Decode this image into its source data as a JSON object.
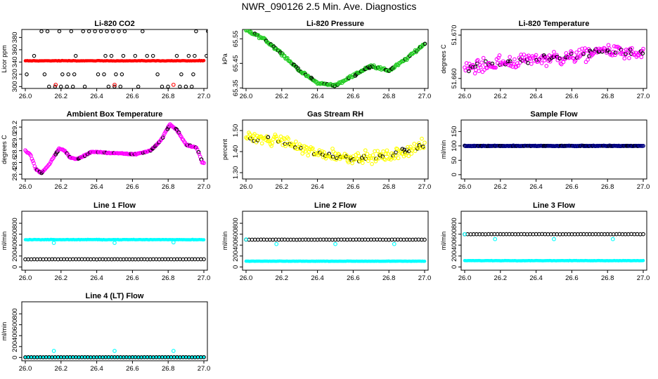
{
  "page": {
    "title": "NWR_090126  2.5 Min. Ave. Diagnostics"
  },
  "colors": {
    "black": "#000000",
    "red": "#ff0000",
    "green": "#22cc22",
    "magenta": "#ff00ff",
    "yellow": "#ffff00",
    "blue": "#000080",
    "cyan": "#00ffff"
  },
  "chart_data": [
    {
      "id": "co2",
      "type": "scatter",
      "title": "Li-820 CO2",
      "ylabel": "Licor ppm",
      "xlim": [
        26.0,
        27.0
      ],
      "ylim": [
        297,
        393
      ],
      "xticks": [
        "26.0",
        "26.2",
        "26.4",
        "26.6",
        "26.8",
        "27.0"
      ],
      "xtick_values": [
        26.0,
        26.2,
        26.4,
        26.6,
        26.8,
        27.0
      ],
      "yticks": [
        "300",
        "320",
        "340",
        "360",
        "380"
      ],
      "ytick_values": [
        300,
        320,
        340,
        360,
        380
      ],
      "series": [
        {
          "name": "reference levels",
          "color": "black",
          "style": "ring",
          "pattern": "levels",
          "levels": [
            300,
            320,
            350,
            390
          ],
          "base": 342,
          "baseline_dense": false
        },
        {
          "name": "CO2",
          "color": "red",
          "style": "solid",
          "pattern": "flat",
          "base": 342,
          "noise": 0.6
        },
        {
          "name": "CO2 outliers",
          "color": "red",
          "style": "ring",
          "points": [
            [
              26.17,
              303
            ],
            [
              26.5,
              303
            ],
            [
              26.83,
              303
            ]
          ]
        }
      ]
    },
    {
      "id": "pressure",
      "type": "scatter",
      "title": "Li-820 Pressure",
      "ylabel": "kPa",
      "xlim": [
        26.0,
        27.0
      ],
      "ylim": [
        65.348,
        65.588
      ],
      "xticks": [
        "26.0",
        "26.2",
        "26.4",
        "26.6",
        "26.8",
        "27.0"
      ],
      "xtick_values": [
        26.0,
        26.2,
        26.4,
        26.6,
        26.8,
        27.0
      ],
      "yticks": [
        "65.35",
        "65.45",
        "65.55"
      ],
      "ytick_values": [
        65.35,
        65.45,
        65.55
      ],
      "series": [
        {
          "name": "pressure",
          "color": "green",
          "style": "ring",
          "pattern": "curve",
          "curve": [
            [
              26.0,
              65.585
            ],
            [
              26.1,
              65.55
            ],
            [
              26.2,
              65.49
            ],
            [
              26.3,
              65.42
            ],
            [
              26.4,
              65.37
            ],
            [
              26.5,
              65.36
            ],
            [
              26.6,
              65.4
            ],
            [
              26.7,
              65.44
            ],
            [
              26.8,
              65.42
            ],
            [
              26.9,
              65.47
            ],
            [
              27.0,
              65.53
            ]
          ],
          "noise": 0.008,
          "with_black": true
        }
      ]
    },
    {
      "id": "li820temp",
      "type": "scatter",
      "title": "Li-820 Temperature",
      "ylabel": "degrees C",
      "xlim": [
        26.0,
        27.0
      ],
      "ylim": [
        51.6577,
        51.6713
      ],
      "xticks": [
        "26.0",
        "26.2",
        "26.4",
        "26.6",
        "26.8",
        "27.0"
      ],
      "xtick_values": [
        26.0,
        26.2,
        26.4,
        26.6,
        26.8,
        27.0
      ],
      "yticks": [
        "51.660",
        "51.670"
      ],
      "ytick_values": [
        51.66,
        51.67
      ],
      "series": [
        {
          "name": "temperature",
          "color": "magenta",
          "style": "ring",
          "pattern": "curve",
          "curve": [
            [
              26.0,
              51.6625
            ],
            [
              26.2,
              51.6635
            ],
            [
              26.4,
              51.6645
            ],
            [
              26.6,
              51.665
            ],
            [
              26.8,
              51.6665
            ],
            [
              27.0,
              51.6655
            ]
          ],
          "noise": 0.0022,
          "with_black": true
        }
      ]
    },
    {
      "id": "ambient",
      "type": "scatter",
      "title": "Ambient Box Temperature",
      "ylabel": "degrees C",
      "xlim": [
        26.0,
        27.0
      ],
      "ylim": [
        28.32,
        29.32
      ],
      "xticks": [
        "26.0",
        "26.2",
        "26.4",
        "26.6",
        "26.8",
        "27.0"
      ],
      "xtick_values": [
        26.0,
        26.2,
        26.4,
        26.6,
        26.8,
        27.0
      ],
      "yticks": [
        "28.4",
        "28.6",
        "28.8",
        "29.0",
        "29.2"
      ],
      "ytick_values": [
        28.4,
        28.6,
        28.8,
        29.0,
        29.2
      ],
      "series": [
        {
          "name": "ambient temp",
          "color": "magenta",
          "style": "ring",
          "pattern": "curve",
          "curve": [
            [
              26.0,
              28.8
            ],
            [
              26.03,
              28.72
            ],
            [
              26.06,
              28.48
            ],
            [
              26.09,
              28.42
            ],
            [
              26.13,
              28.55
            ],
            [
              26.19,
              28.84
            ],
            [
              26.22,
              28.8
            ],
            [
              26.25,
              28.68
            ],
            [
              26.29,
              28.66
            ],
            [
              26.33,
              28.71
            ],
            [
              26.37,
              28.78
            ],
            [
              26.5,
              28.76
            ],
            [
              26.62,
              28.74
            ],
            [
              26.7,
              28.8
            ],
            [
              26.76,
              28.98
            ],
            [
              26.81,
              29.25
            ],
            [
              26.85,
              29.15
            ],
            [
              26.9,
              28.9
            ],
            [
              26.96,
              28.85
            ],
            [
              26.99,
              28.6
            ]
          ],
          "noise": 0.015,
          "with_black": true
        }
      ]
    },
    {
      "id": "rh",
      "type": "scatter",
      "title": "Gas Stream RH",
      "ylabel": "percent",
      "xlim": [
        26.0,
        27.0
      ],
      "ylim": [
        1.27,
        1.55
      ],
      "xticks": [
        "26.0",
        "26.2",
        "26.4",
        "26.6",
        "26.8",
        "27.0"
      ],
      "xtick_values": [
        26.0,
        26.2,
        26.4,
        26.6,
        26.8,
        27.0
      ],
      "yticks": [
        "1.30",
        "1.40",
        "1.50"
      ],
      "ytick_values": [
        1.3,
        1.4,
        1.5
      ],
      "series": [
        {
          "name": "RH",
          "color": "yellow",
          "style": "ring",
          "pattern": "curve",
          "curve": [
            [
              26.0,
              1.47
            ],
            [
              26.2,
              1.45
            ],
            [
              26.4,
              1.39
            ],
            [
              26.6,
              1.37
            ],
            [
              26.8,
              1.38
            ],
            [
              27.0,
              1.43
            ]
          ],
          "noise": 0.04,
          "with_black": true
        }
      ]
    },
    {
      "id": "sample",
      "type": "scatter",
      "title": "Sample Flow",
      "ylabel": "ml/min",
      "xlim": [
        26.0,
        27.0
      ],
      "ylim": [
        -15,
        190
      ],
      "xticks": [
        "26.0",
        "26.2",
        "26.4",
        "26.6",
        "26.8",
        "27.0"
      ],
      "xtick_values": [
        26.0,
        26.2,
        26.4,
        26.6,
        26.8,
        27.0
      ],
      "yticks": [
        "0",
        "50",
        "100",
        "150"
      ],
      "ytick_values": [
        0,
        50,
        100,
        150
      ],
      "series": [
        {
          "name": "sample flow",
          "color": "blue",
          "style": "ring",
          "pattern": "flat",
          "base": 100,
          "noise": 1.5,
          "with_black": true
        }
      ]
    },
    {
      "id": "line1",
      "type": "scatter",
      "title": "Line 1 Flow",
      "ylabel": "ml/min",
      "xlim": [
        26.0,
        27.0
      ],
      "ylim": [
        -60,
        1020
      ],
      "xticks": [
        "26.0",
        "26.2",
        "26.4",
        "26.6",
        "26.8",
        "27.0"
      ],
      "xtick_values": [
        26.0,
        26.2,
        26.4,
        26.6,
        26.8,
        27.0
      ],
      "yticks": [
        "0",
        "200",
        "400",
        "600",
        "800"
      ],
      "ytick_values": [
        0,
        200,
        400,
        600,
        800
      ],
      "series": [
        {
          "name": "line 1 cyan",
          "color": "cyan",
          "style": "solid",
          "pattern": "flat",
          "base": 500,
          "noise": 6
        },
        {
          "name": "line 1 black",
          "color": "black",
          "style": "ring",
          "pattern": "flat",
          "base": 140,
          "noise": 2,
          "sparse": true
        },
        {
          "name": "line 1 dips",
          "color": "cyan",
          "style": "ring",
          "points": [
            [
              26.16,
              440
            ],
            [
              26.5,
              440
            ],
            [
              26.83,
              450
            ]
          ]
        }
      ]
    },
    {
      "id": "line2",
      "type": "scatter",
      "title": "Line 2 Flow",
      "ylabel": "ml/min",
      "xlim": [
        26.0,
        27.0
      ],
      "ylim": [
        -60,
        1020
      ],
      "xticks": [
        "26.0",
        "26.2",
        "26.4",
        "26.6",
        "26.8",
        "27.0"
      ],
      "xtick_values": [
        26.0,
        26.2,
        26.4,
        26.6,
        26.8,
        27.0
      ],
      "yticks": [
        "0",
        "200",
        "400",
        "600",
        "800"
      ],
      "ytick_values": [
        0,
        200,
        400,
        600,
        800
      ],
      "series": [
        {
          "name": "line 2 cyan",
          "color": "cyan",
          "style": "solid",
          "pattern": "flat",
          "base": 105,
          "noise": 4
        },
        {
          "name": "line 2 black",
          "color": "black",
          "style": "ring",
          "pattern": "flat",
          "base": 500,
          "noise": 3,
          "sparse": true
        },
        {
          "name": "line 2 dips",
          "color": "cyan",
          "style": "ring",
          "points": [
            [
              26.0,
              505
            ],
            [
              26.17,
              420
            ],
            [
              26.5,
              420
            ],
            [
              26.83,
              420
            ]
          ]
        }
      ]
    },
    {
      "id": "line3",
      "type": "scatter",
      "title": "Line 3 Flow",
      "ylabel": "ml/min",
      "xlim": [
        26.0,
        27.0
      ],
      "ylim": [
        -60,
        1020
      ],
      "xticks": [
        "26.0",
        "26.2",
        "26.4",
        "26.6",
        "26.8",
        "27.0"
      ],
      "xtick_values": [
        26.0,
        26.2,
        26.4,
        26.6,
        26.8,
        27.0
      ],
      "yticks": [
        "0",
        "200",
        "400",
        "600",
        "800"
      ],
      "ytick_values": [
        0,
        200,
        400,
        600,
        800
      ],
      "series": [
        {
          "name": "line 3 cyan",
          "color": "cyan",
          "style": "solid",
          "pattern": "flat",
          "base": 115,
          "noise": 4
        },
        {
          "name": "line 3 black",
          "color": "black",
          "style": "ring",
          "pattern": "flat",
          "base": 600,
          "noise": 3,
          "sparse": true
        },
        {
          "name": "line 3 dips",
          "color": "cyan",
          "style": "ring",
          "points": [
            [
              26.0,
              600
            ],
            [
              26.17,
              510
            ],
            [
              26.5,
              510
            ],
            [
              26.83,
              510
            ]
          ]
        }
      ]
    },
    {
      "id": "line4",
      "type": "scatter",
      "title": "Line 4 (LT) Flow",
      "ylabel": "ml/min",
      "xlim": [
        26.0,
        27.0
      ],
      "ylim": [
        -60,
        1020
      ],
      "xticks": [
        "26.0",
        "26.2",
        "26.4",
        "26.6",
        "26.8",
        "27.0"
      ],
      "xtick_values": [
        26.0,
        26.2,
        26.4,
        26.6,
        26.8,
        27.0
      ],
      "yticks": [
        "0",
        "200",
        "400",
        "600",
        "800"
      ],
      "ytick_values": [
        0,
        200,
        400,
        600,
        800
      ],
      "series": [
        {
          "name": "line 4 cyan",
          "color": "cyan",
          "style": "solid",
          "pattern": "flat",
          "base": 3,
          "noise": 1
        },
        {
          "name": "line 4 black",
          "color": "black",
          "style": "ring",
          "pattern": "flat",
          "base": 5,
          "noise": 1,
          "sparse": true
        },
        {
          "name": "line 4 spikes",
          "color": "cyan",
          "style": "ring",
          "points": [
            [
              26.16,
              120
            ],
            [
              26.5,
              120
            ],
            [
              26.83,
              120
            ]
          ]
        }
      ]
    }
  ]
}
